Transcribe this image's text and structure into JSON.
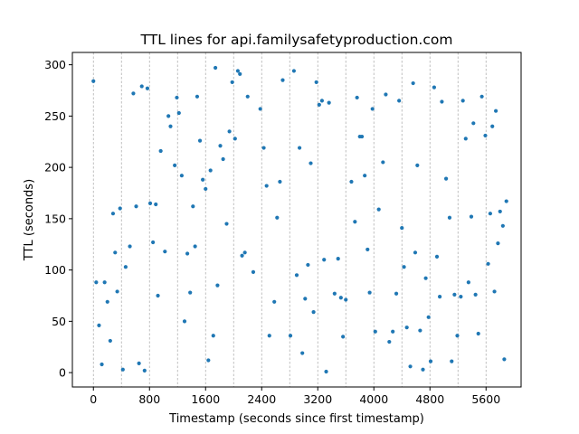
{
  "chart_data": {
    "type": "scatter",
    "title": "TTL lines for api.familysafetyproduction.com",
    "xlabel": "Timestamp (seconds since first timestamp)",
    "ylabel": "TTL (seconds)",
    "xlim": [
      -300,
      6100
    ],
    "ylim": [
      -14,
      312
    ],
    "xticks": [
      0,
      800,
      1600,
      2400,
      3200,
      4000,
      4800,
      5600
    ],
    "yticks": [
      0,
      50,
      100,
      150,
      200,
      250,
      300
    ],
    "vertical_gridlines_x": [
      0,
      400,
      800,
      1200,
      1600,
      2000,
      2400,
      2800,
      3200,
      3600,
      4000,
      4400,
      4800,
      5200,
      5600
    ],
    "grid": "vertical dashed",
    "marker_color": "#1f77b4",
    "points": [
      {
        "x": 0,
        "y": 284
      },
      {
        "x": 40,
        "y": 88
      },
      {
        "x": 80,
        "y": 46
      },
      {
        "x": 120,
        "y": 8
      },
      {
        "x": 160,
        "y": 88
      },
      {
        "x": 200,
        "y": 69
      },
      {
        "x": 240,
        "y": 31
      },
      {
        "x": 280,
        "y": 155
      },
      {
        "x": 310,
        "y": 117
      },
      {
        "x": 340,
        "y": 79
      },
      {
        "x": 380,
        "y": 160
      },
      {
        "x": 420,
        "y": 3
      },
      {
        "x": 460,
        "y": 103
      },
      {
        "x": 520,
        "y": 123
      },
      {
        "x": 570,
        "y": 272
      },
      {
        "x": 610,
        "y": 162
      },
      {
        "x": 650,
        "y": 9
      },
      {
        "x": 690,
        "y": 279
      },
      {
        "x": 730,
        "y": 2
      },
      {
        "x": 770,
        "y": 277
      },
      {
        "x": 810,
        "y": 165
      },
      {
        "x": 850,
        "y": 127
      },
      {
        "x": 890,
        "y": 164
      },
      {
        "x": 920,
        "y": 75
      },
      {
        "x": 960,
        "y": 216
      },
      {
        "x": 1020,
        "y": 118
      },
      {
        "x": 1070,
        "y": 250
      },
      {
        "x": 1100,
        "y": 240
      },
      {
        "x": 1160,
        "y": 202
      },
      {
        "x": 1190,
        "y": 268
      },
      {
        "x": 1220,
        "y": 253
      },
      {
        "x": 1260,
        "y": 192
      },
      {
        "x": 1300,
        "y": 50
      },
      {
        "x": 1340,
        "y": 116
      },
      {
        "x": 1380,
        "y": 78
      },
      {
        "x": 1420,
        "y": 162
      },
      {
        "x": 1450,
        "y": 123
      },
      {
        "x": 1480,
        "y": 269
      },
      {
        "x": 1520,
        "y": 226
      },
      {
        "x": 1560,
        "y": 188
      },
      {
        "x": 1600,
        "y": 179
      },
      {
        "x": 1640,
        "y": 12
      },
      {
        "x": 1670,
        "y": 197
      },
      {
        "x": 1710,
        "y": 36
      },
      {
        "x": 1740,
        "y": 297
      },
      {
        "x": 1770,
        "y": 85
      },
      {
        "x": 1810,
        "y": 221
      },
      {
        "x": 1850,
        "y": 208
      },
      {
        "x": 1900,
        "y": 145
      },
      {
        "x": 1940,
        "y": 235
      },
      {
        "x": 1980,
        "y": 283
      },
      {
        "x": 2020,
        "y": 228
      },
      {
        "x": 2060,
        "y": 294
      },
      {
        "x": 2090,
        "y": 291
      },
      {
        "x": 2120,
        "y": 114
      },
      {
        "x": 2160,
        "y": 117
      },
      {
        "x": 2200,
        "y": 269
      },
      {
        "x": 2280,
        "y": 98
      },
      {
        "x": 2380,
        "y": 257
      },
      {
        "x": 2430,
        "y": 219
      },
      {
        "x": 2470,
        "y": 182
      },
      {
        "x": 2510,
        "y": 36
      },
      {
        "x": 2580,
        "y": 69
      },
      {
        "x": 2620,
        "y": 151
      },
      {
        "x": 2660,
        "y": 186
      },
      {
        "x": 2700,
        "y": 285
      },
      {
        "x": 2810,
        "y": 36
      },
      {
        "x": 2860,
        "y": 294
      },
      {
        "x": 2900,
        "y": 95
      },
      {
        "x": 2940,
        "y": 219
      },
      {
        "x": 2980,
        "y": 19
      },
      {
        "x": 3020,
        "y": 72
      },
      {
        "x": 3060,
        "y": 105
      },
      {
        "x": 3100,
        "y": 204
      },
      {
        "x": 3140,
        "y": 59
      },
      {
        "x": 3180,
        "y": 283
      },
      {
        "x": 3220,
        "y": 261
      },
      {
        "x": 3260,
        "y": 265
      },
      {
        "x": 3290,
        "y": 110
      },
      {
        "x": 3320,
        "y": 1
      },
      {
        "x": 3360,
        "y": 263
      },
      {
        "x": 3440,
        "y": 77
      },
      {
        "x": 3490,
        "y": 111
      },
      {
        "x": 3530,
        "y": 73
      },
      {
        "x": 3560,
        "y": 35
      },
      {
        "x": 3600,
        "y": 71
      },
      {
        "x": 3680,
        "y": 186
      },
      {
        "x": 3730,
        "y": 147
      },
      {
        "x": 3760,
        "y": 268
      },
      {
        "x": 3800,
        "y": 230
      },
      {
        "x": 3830,
        "y": 230
      },
      {
        "x": 3870,
        "y": 192
      },
      {
        "x": 3910,
        "y": 120
      },
      {
        "x": 3940,
        "y": 78
      },
      {
        "x": 3980,
        "y": 257
      },
      {
        "x": 4020,
        "y": 40
      },
      {
        "x": 4070,
        "y": 159
      },
      {
        "x": 4130,
        "y": 205
      },
      {
        "x": 4170,
        "y": 271
      },
      {
        "x": 4220,
        "y": 30
      },
      {
        "x": 4270,
        "y": 40
      },
      {
        "x": 4320,
        "y": 77
      },
      {
        "x": 4360,
        "y": 265
      },
      {
        "x": 4400,
        "y": 141
      },
      {
        "x": 4430,
        "y": 103
      },
      {
        "x": 4470,
        "y": 44
      },
      {
        "x": 4520,
        "y": 6
      },
      {
        "x": 4560,
        "y": 282
      },
      {
        "x": 4590,
        "y": 117
      },
      {
        "x": 4620,
        "y": 202
      },
      {
        "x": 4660,
        "y": 41
      },
      {
        "x": 4700,
        "y": 3
      },
      {
        "x": 4740,
        "y": 92
      },
      {
        "x": 4780,
        "y": 54
      },
      {
        "x": 4810,
        "y": 11
      },
      {
        "x": 4860,
        "y": 278
      },
      {
        "x": 4900,
        "y": 113
      },
      {
        "x": 4940,
        "y": 74
      },
      {
        "x": 4970,
        "y": 264
      },
      {
        "x": 5030,
        "y": 189
      },
      {
        "x": 5080,
        "y": 151
      },
      {
        "x": 5110,
        "y": 11
      },
      {
        "x": 5150,
        "y": 76
      },
      {
        "x": 5190,
        "y": 36
      },
      {
        "x": 5240,
        "y": 74
      },
      {
        "x": 5270,
        "y": 265
      },
      {
        "x": 5310,
        "y": 228
      },
      {
        "x": 5350,
        "y": 88
      },
      {
        "x": 5390,
        "y": 152
      },
      {
        "x": 5420,
        "y": 243
      },
      {
        "x": 5450,
        "y": 76
      },
      {
        "x": 5490,
        "y": 38
      },
      {
        "x": 5540,
        "y": 269
      },
      {
        "x": 5590,
        "y": 231
      },
      {
        "x": 5630,
        "y": 106
      },
      {
        "x": 5660,
        "y": 155
      },
      {
        "x": 5690,
        "y": 240
      },
      {
        "x": 5720,
        "y": 79
      },
      {
        "x": 5740,
        "y": 255
      },
      {
        "x": 5770,
        "y": 126
      },
      {
        "x": 5800,
        "y": 157
      },
      {
        "x": 5840,
        "y": 143
      },
      {
        "x": 5860,
        "y": 13
      },
      {
        "x": 5890,
        "y": 167
      }
    ]
  }
}
